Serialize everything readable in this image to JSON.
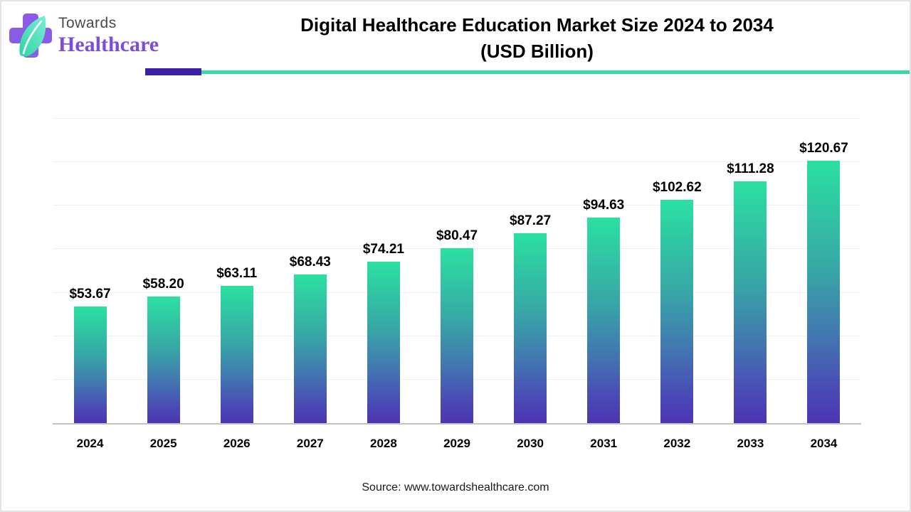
{
  "logo": {
    "brand_top": "Towards",
    "brand_bottom": "Healthcare"
  },
  "title": {
    "line1": "Digital Healthcare Education Market Size 2024 to 2034",
    "line2": "(USD Billion)"
  },
  "source": "Source: www.towardshealthcare.com",
  "colors": {
    "bar_gradient_top": "#2be0a1",
    "bar_gradient_mid": "#4374b1",
    "bar_gradient_bottom": "#4c35b2",
    "divider_purple": "#3b1fa8",
    "divider_teal": "#36d9a8",
    "logo_cross_purple": "#8a5be6",
    "logo_leaf_teal": "#3fdfbb",
    "brand_name_purple": "#7c4ed8",
    "brand_top_gray": "#4a4a4a",
    "axis_gray": "#c2c2c2",
    "gridline_gray": "#f0f0f0",
    "title_black": "#000000"
  },
  "chart_data": {
    "type": "bar",
    "title": "Digital Healthcare Education Market Size 2024 to 2034 (USD Billion)",
    "categories": [
      "2024",
      "2025",
      "2026",
      "2027",
      "2028",
      "2029",
      "2030",
      "2031",
      "2032",
      "2033",
      "2034"
    ],
    "values": [
      53.67,
      58.2,
      63.11,
      68.43,
      74.21,
      80.47,
      87.27,
      94.63,
      102.62,
      111.28,
      120.67
    ],
    "labels": [
      "$53.67",
      "$58.20",
      "$63.11",
      "$68.43",
      "$74.21",
      "$80.47",
      "$87.27",
      "$94.63",
      "$102.62",
      "$111.28",
      "$120.67"
    ],
    "xlabel": "",
    "ylabel": "",
    "ylim": [
      0,
      140
    ],
    "gridlines": [
      20,
      40,
      60,
      80,
      100,
      120,
      140
    ],
    "grid": "horizontal",
    "legend": "none",
    "value_label_format": "currency_2dp"
  }
}
